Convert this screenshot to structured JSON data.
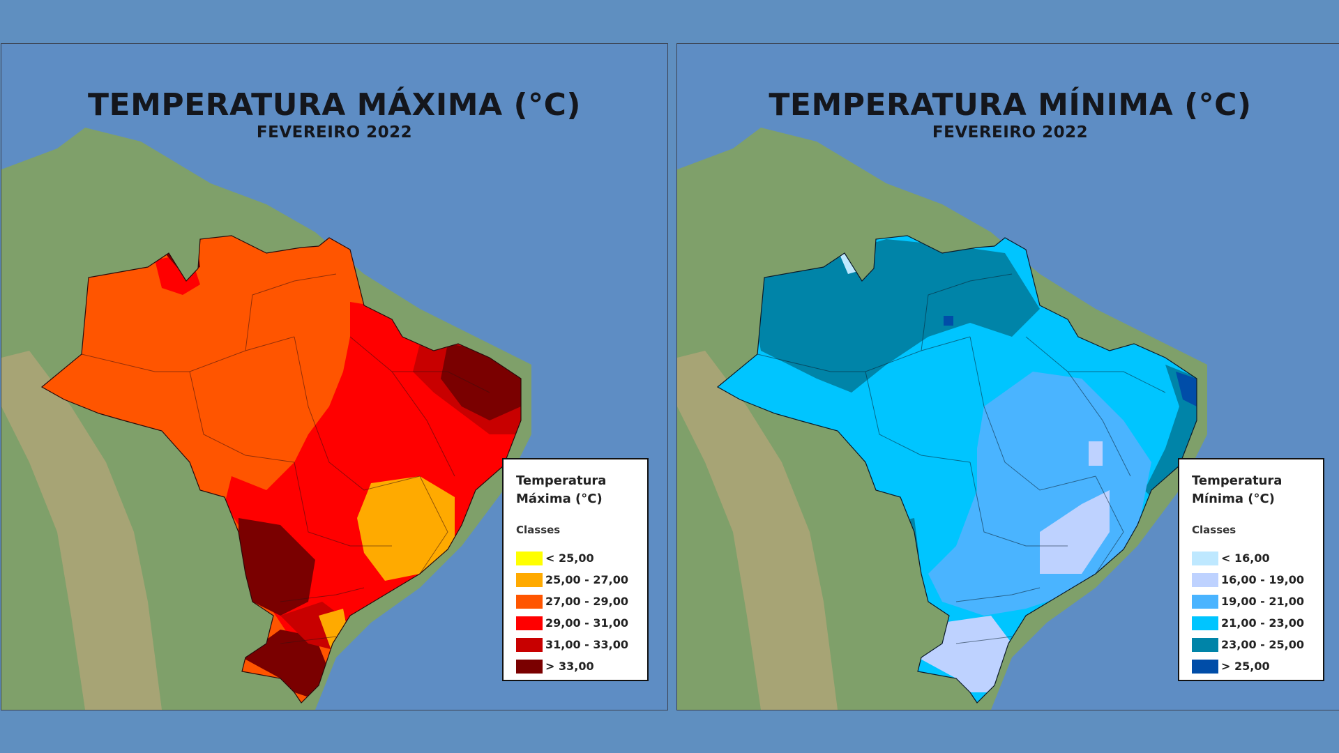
{
  "panels": [
    {
      "title": "TEMPERATURA MÁXIMA (°C)",
      "subtitle": "FEVEREIRO 2022",
      "legend": {
        "title": "Temperatura Máxima (°C)",
        "subtitle": "Classes",
        "classes": [
          {
            "label": "< 25,00",
            "color": "#ffff00"
          },
          {
            "label": "25,00 - 27,00",
            "color": "#ffaa00"
          },
          {
            "label": "27,00 - 29,00",
            "color": "#ff5500"
          },
          {
            "label": "29,00 - 31,00",
            "color": "#ff0000"
          },
          {
            "label": "31,00 - 33,00",
            "color": "#c80000"
          },
          {
            "label": "> 33,00",
            "color": "#7a0000"
          }
        ]
      }
    },
    {
      "title": "TEMPERATURA MÍNIMA (°C)",
      "subtitle": "FEVEREIRO 2022",
      "legend": {
        "title": "Temperatura Mínima (°C)",
        "subtitle": "Classes",
        "classes": [
          {
            "label": "< 16,00",
            "color": "#bee8ff"
          },
          {
            "label": "16,00 - 19,00",
            "color": "#bed2ff"
          },
          {
            "label": "19,00 - 21,00",
            "color": "#4ab4ff"
          },
          {
            "label": "21,00 - 23,00",
            "color": "#00c5ff"
          },
          {
            "label": "23,00 - 25,00",
            "color": "#0084a8"
          },
          {
            "label": "> 25,00",
            "color": "#004da8"
          }
        ]
      }
    }
  ]
}
